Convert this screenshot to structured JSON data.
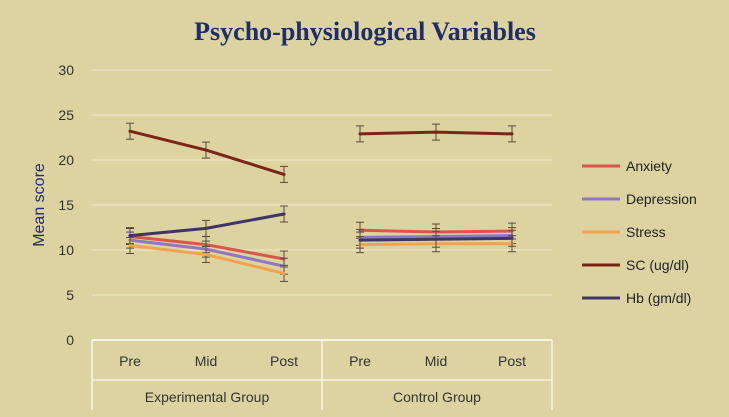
{
  "chart_data": {
    "type": "line",
    "title": "Psycho-physiological Variables",
    "ylabel": "Mean score",
    "ylim": [
      0,
      30
    ],
    "yticks": [
      0,
      5,
      10,
      15,
      20,
      25,
      30
    ],
    "grid": true,
    "legend_position": "right",
    "groups": [
      {
        "name": "Experimental Group",
        "categories": [
          "Pre",
          "Mid",
          "Post"
        ]
      },
      {
        "name": "Control Group",
        "categories": [
          "Pre",
          "Mid",
          "Post"
        ]
      }
    ],
    "series": [
      {
        "name": "Anxiety",
        "color": "#d9574a",
        "experimental": [
          11.5,
          10.6,
          9.0
        ],
        "control": [
          12.2,
          12.0,
          12.1
        ]
      },
      {
        "name": "Depression",
        "color": "#8f78c2",
        "experimental": [
          11.1,
          10.1,
          8.2
        ],
        "control": [
          11.4,
          11.5,
          11.6
        ]
      },
      {
        "name": "Stress",
        "color": "#f2a350",
        "experimental": [
          10.5,
          9.5,
          7.4
        ],
        "control": [
          10.6,
          10.7,
          10.7
        ]
      },
      {
        "name": "SC (ug/dl)",
        "color": "#7b2418",
        "experimental": [
          23.2,
          21.1,
          18.4
        ],
        "control": [
          22.9,
          23.1,
          22.9
        ]
      },
      {
        "name": "Hb (gm/dl)",
        "color": "#3f3468",
        "experimental": [
          11.6,
          12.4,
          14.0
        ],
        "control": [
          11.1,
          11.2,
          11.3
        ]
      }
    ]
  }
}
